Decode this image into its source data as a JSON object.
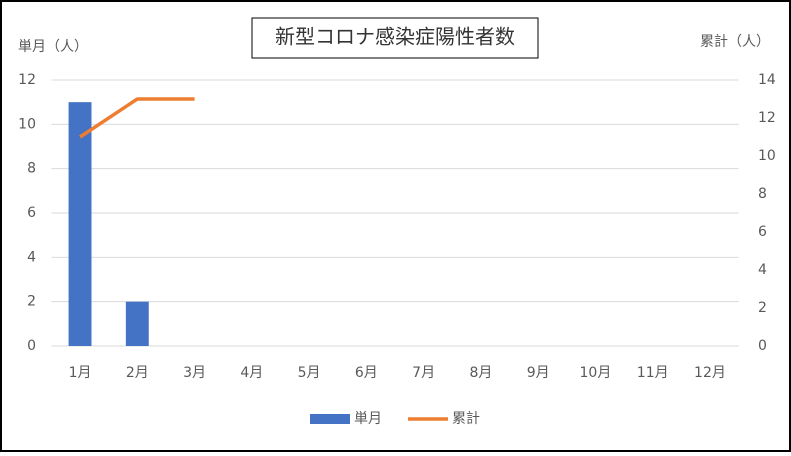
{
  "chart_data": {
    "type": "combo",
    "title": "新型コロナ感染症陽性者数",
    "ylabel": "単月（人）",
    "y2label": "累計（人）",
    "categories": [
      "1月",
      "2月",
      "3月",
      "4月",
      "5月",
      "6月",
      "7月",
      "8月",
      "9月",
      "10月",
      "11月",
      "12月"
    ],
    "series": [
      {
        "name": "単月",
        "type": "bar",
        "color": "#4472c4",
        "values": [
          11,
          2,
          0,
          null,
          null,
          null,
          null,
          null,
          null,
          null,
          null,
          null
        ]
      },
      {
        "name": "累計",
        "type": "line",
        "axis": "y2",
        "color": "#ed7d31",
        "values": [
          11,
          13,
          13,
          null,
          null,
          null,
          null,
          null,
          null,
          null,
          null,
          null
        ]
      }
    ],
    "ylim": [
      0,
      12
    ],
    "yticks": [
      0,
      2,
      4,
      6,
      8,
      10,
      12
    ],
    "y2lim": [
      0,
      14
    ],
    "y2ticks": [
      0,
      2,
      4,
      6,
      8,
      10,
      12,
      14
    ],
    "grid": true,
    "legend": "bottom"
  }
}
